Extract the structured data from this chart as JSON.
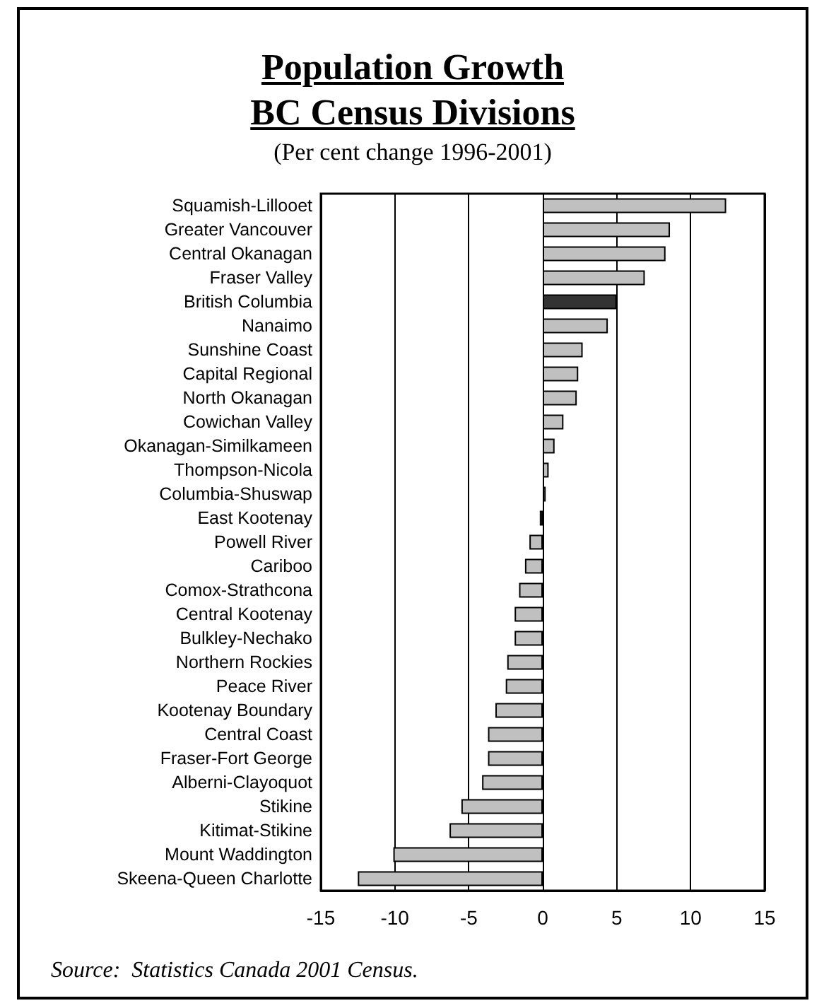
{
  "chart_data": {
    "type": "bar",
    "orientation": "horizontal",
    "title": "Population Growth\nBC Census Divisions",
    "subtitle": "(Per cent change 1996-2001)",
    "categories": [
      "Squamish-Lillooet",
      "Greater Vancouver",
      "Central Okanagan",
      "Fraser Valley",
      "British Columbia",
      "Nanaimo",
      "Sunshine Coast",
      "Capital Regional",
      "North Okanagan",
      "Cowichan Valley",
      "Okanagan-Similkameen",
      "Thompson-Nicola",
      "Columbia-Shuswap",
      "East Kootenay",
      "Powell River",
      "Cariboo",
      "Comox-Strathcona",
      "Central Kootenay",
      "Bulkley-Nechako",
      "Northern Rockies",
      "Peace River",
      "Kootenay Boundary",
      "Central Coast",
      "Fraser-Fort George",
      "Alberni-Clayoquot",
      "Stikine",
      "Kitimat-Stikine",
      "Mount Waddington",
      "Skeena-Queen Charlotte"
    ],
    "values": [
      12.4,
      8.6,
      8.3,
      6.9,
      5.0,
      4.4,
      2.7,
      2.4,
      2.3,
      1.4,
      0.8,
      0.4,
      0.2,
      -0.2,
      -0.9,
      -1.2,
      -1.6,
      -1.9,
      -1.9,
      -2.4,
      -2.5,
      -3.2,
      -3.7,
      -3.7,
      -4.1,
      -5.5,
      -6.3,
      -10.1,
      -12.5
    ],
    "colors": [
      "#c0c0c0",
      "#c0c0c0",
      "#c0c0c0",
      "#c0c0c0",
      "#333333",
      "#c0c0c0",
      "#c0c0c0",
      "#c0c0c0",
      "#c0c0c0",
      "#c0c0c0",
      "#c0c0c0",
      "#c0c0c0",
      "#c0c0c0",
      "#c0c0c0",
      "#c0c0c0",
      "#c0c0c0",
      "#c0c0c0",
      "#c0c0c0",
      "#c0c0c0",
      "#c0c0c0",
      "#c0c0c0",
      "#c0c0c0",
      "#c0c0c0",
      "#c0c0c0",
      "#c0c0c0",
      "#c0c0c0",
      "#c0c0c0",
      "#c0c0c0",
      "#c0c0c0"
    ],
    "xlim": [
      -15,
      15
    ],
    "xticks": [
      -15,
      -10,
      -5,
      0,
      5,
      10,
      15
    ],
    "grid": "x",
    "annotations": [
      "Source:  Statistics Canada 2001 Census."
    ]
  }
}
